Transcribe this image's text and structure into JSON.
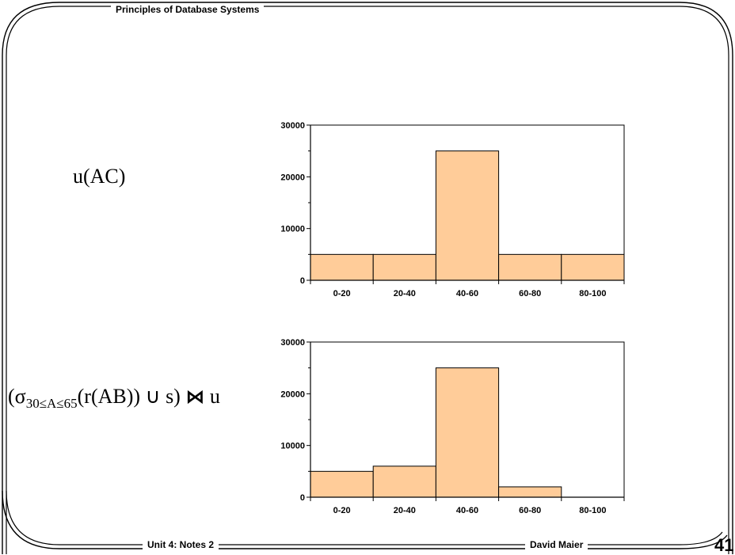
{
  "header": {
    "title": "Principles of Database Systems"
  },
  "footer": {
    "left": "Unit 4: Notes 2",
    "right": "David Maier",
    "page_number": "41"
  },
  "labels": {
    "top": "u(AC)",
    "bottom": {
      "open": "(σ",
      "subscript": "30≤A≤65",
      "middle": "(r(AB)) ∪ s)",
      "join": "⋈",
      "tail": "u"
    }
  },
  "colors": {
    "bar_fill": "#ffcc99",
    "stroke": "#000000",
    "background": "#ffffff"
  },
  "chart_data": [
    {
      "type": "bar",
      "categories": [
        "0-20",
        "20-40",
        "40-60",
        "60-80",
        "80-100"
      ],
      "values": [
        5000,
        5000,
        25000,
        5000,
        5000
      ],
      "ylim": [
        0,
        30000
      ],
      "yticks": [
        0,
        10000,
        20000,
        30000
      ],
      "title": "",
      "xlabel": "",
      "ylabel": ""
    },
    {
      "type": "bar",
      "categories": [
        "0-20",
        "20-40",
        "40-60",
        "60-80",
        "80-100"
      ],
      "values": [
        5000,
        6000,
        25000,
        2000,
        0
      ],
      "ylim": [
        0,
        30000
      ],
      "yticks": [
        0,
        10000,
        20000,
        30000
      ],
      "title": "",
      "xlabel": "",
      "ylabel": ""
    }
  ]
}
